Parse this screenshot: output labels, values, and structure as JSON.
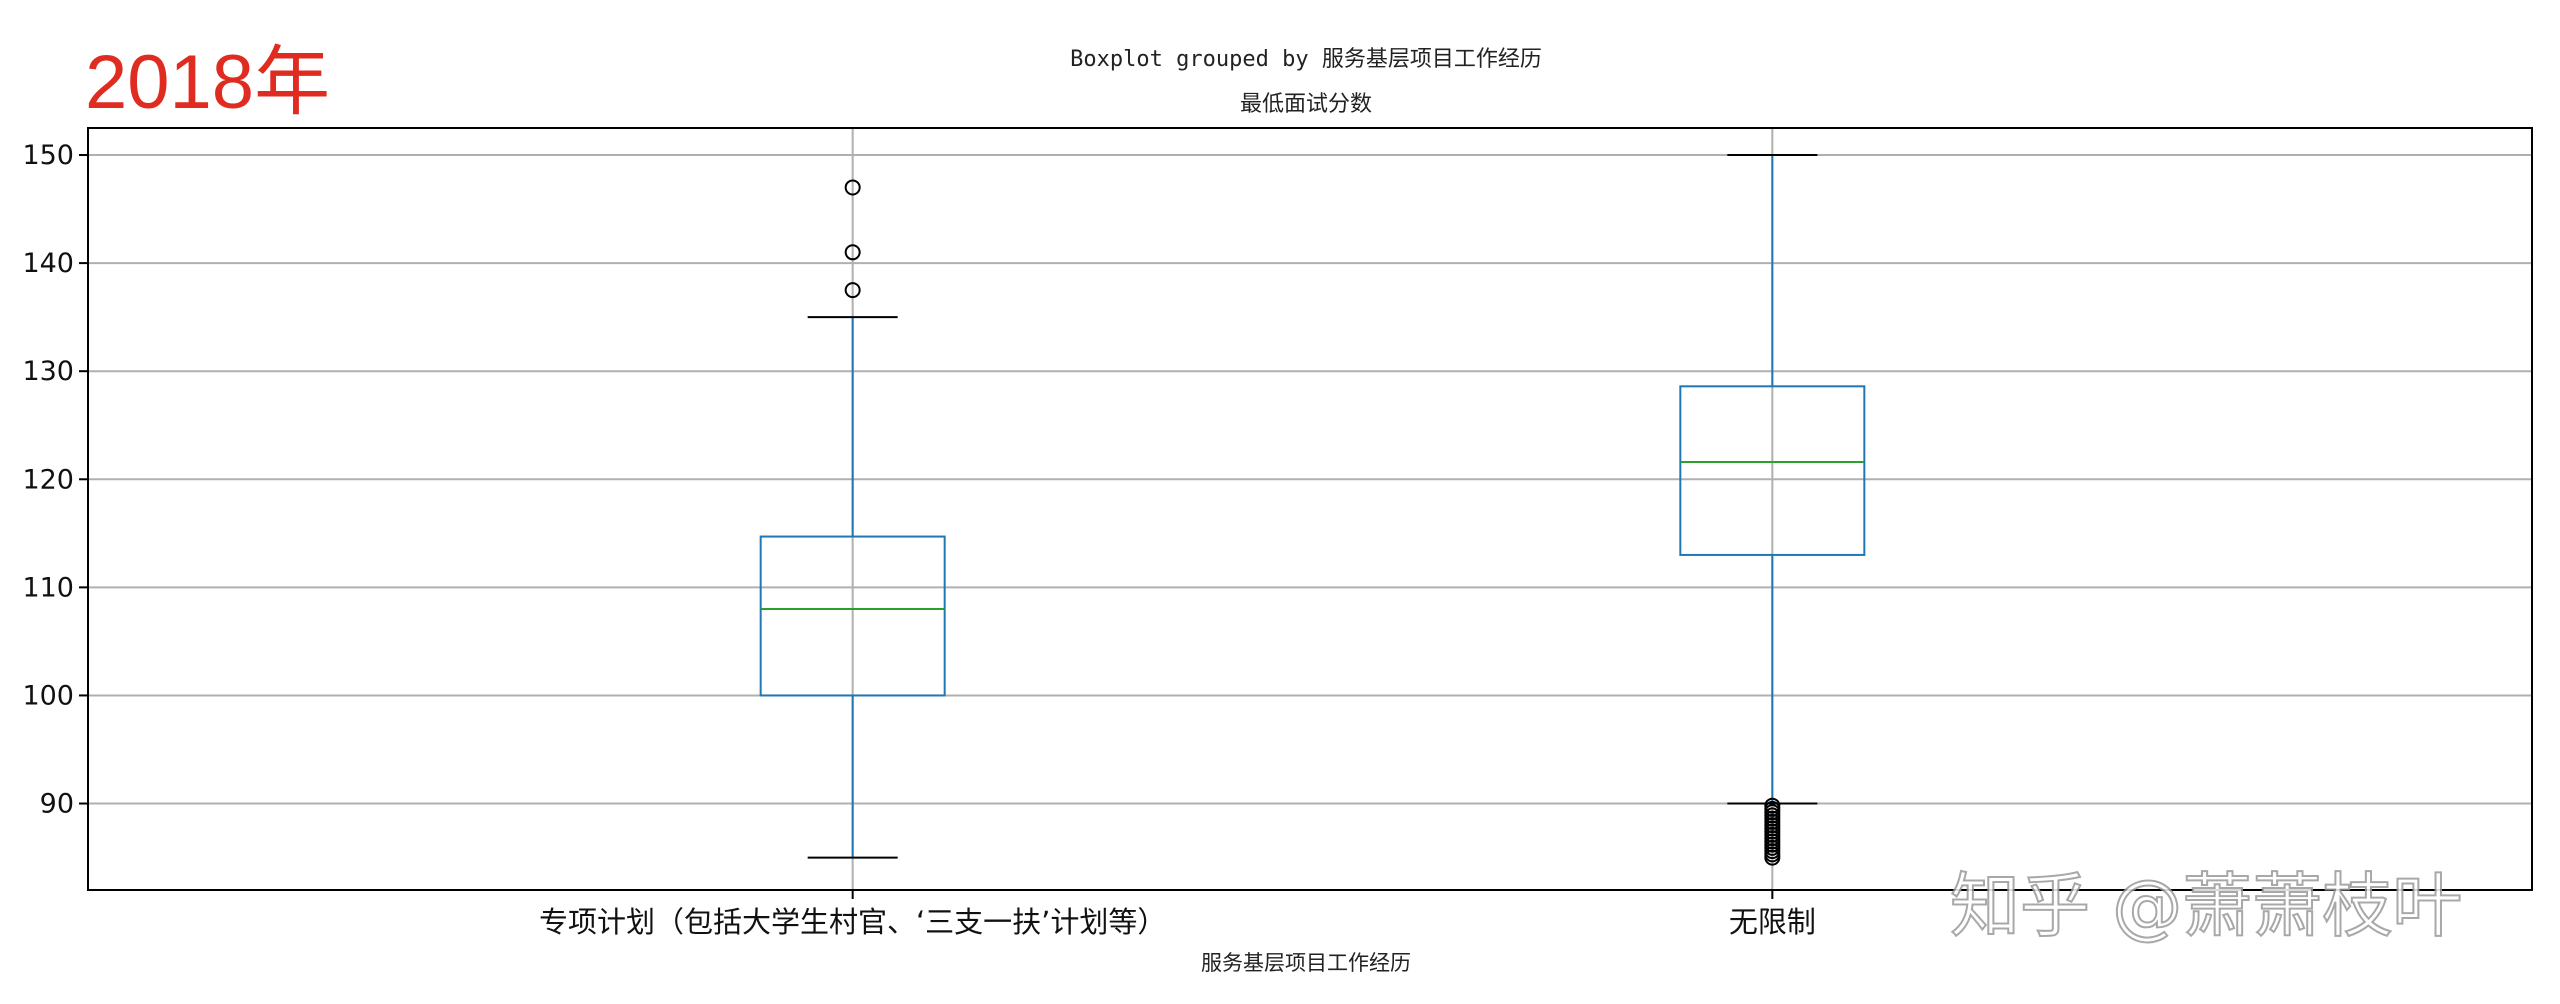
{
  "year_label": "2018年",
  "watermark": "知乎 @萧萧枝叶",
  "chart_data": {
    "type": "boxplot",
    "title": "Boxplot grouped by 服务基层项目工作经历",
    "subtitle": "最低面试分数",
    "xlabel": "服务基层项目工作经历",
    "ylabel": "",
    "ylim": [
      82,
      152.5
    ],
    "yticks": [
      90,
      100,
      110,
      120,
      130,
      140,
      150
    ],
    "grid": true,
    "categories": [
      "专项计划（包括大学生村官、‘三支一扶’计划等）",
      "无限制"
    ],
    "boxes": [
      {
        "category": "专项计划（包括大学生村官、‘三支一扶’计划等）",
        "whisker_low": 85,
        "q1": 100,
        "median": 108,
        "q3": 114.7,
        "whisker_high": 135,
        "fliers": [
          137.5,
          141,
          147
        ]
      },
      {
        "category": "无限制",
        "whisker_low": 90,
        "q1": 113,
        "median": 121.6,
        "q3": 128.6,
        "whisker_high": 150,
        "fliers": [
          89.8,
          89.5,
          89.2,
          88.9,
          88.6,
          88.3,
          88.0,
          87.7,
          87.4,
          87.1,
          86.8,
          86.5,
          86.2,
          85.9,
          85.6,
          85.3,
          85.0
        ]
      }
    ],
    "colors": {
      "box": "#1f77b4",
      "median": "#2ca02c",
      "whisker": "#1f77b4",
      "cap": "#000000",
      "flier": "#000000",
      "grid": "#b0b0b0"
    }
  }
}
